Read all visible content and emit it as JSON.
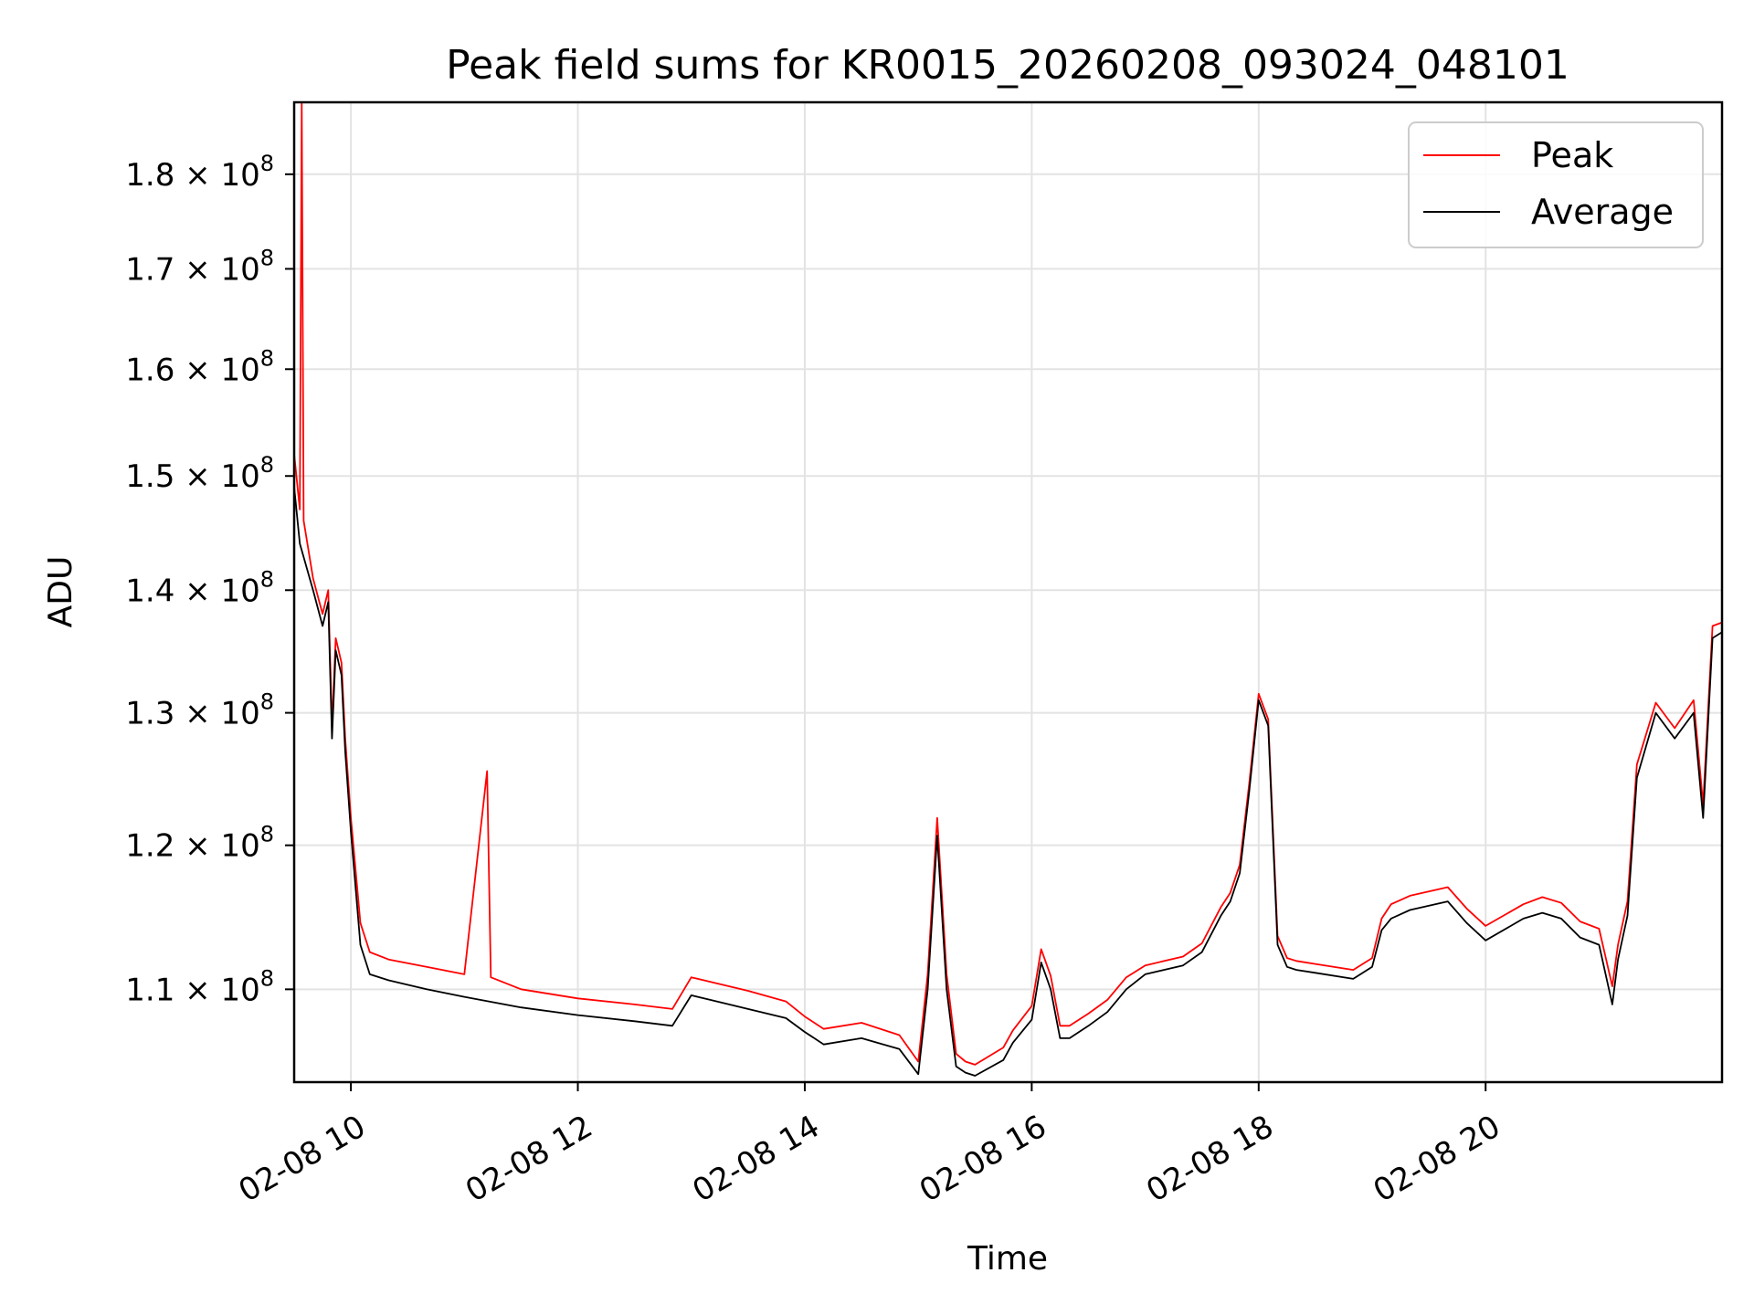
{
  "chart_data": {
    "type": "line",
    "title": "Peak field sums for KR0015_20260208_093024_048101",
    "xlabel": "Time",
    "ylabel": "ADU",
    "x_range": [
      "02-08 09:30",
      "02-08 22:05"
    ],
    "ylim": [
      104000000,
      188000000
    ],
    "y_scale": "log",
    "grid": true,
    "legend": {
      "placement": "top-right"
    },
    "x_ticks": [
      {
        "value": "02-08 10:00",
        "label": "02-08 10"
      },
      {
        "value": "02-08 12:00",
        "label": "02-08 12"
      },
      {
        "value": "02-08 14:00",
        "label": "02-08 14"
      },
      {
        "value": "02-08 16:00",
        "label": "02-08 16"
      },
      {
        "value": "02-08 18:00",
        "label": "02-08 18"
      },
      {
        "value": "02-08 20:00",
        "label": "02-08 20"
      }
    ],
    "y_ticks": [
      {
        "value": 110000000,
        "mantissa": "1.1",
        "base": "10",
        "exponent": "8"
      },
      {
        "value": 120000000,
        "mantissa": "1.2",
        "base": "10",
        "exponent": "8"
      },
      {
        "value": 130000000,
        "mantissa": "1.3",
        "base": "10",
        "exponent": "8"
      },
      {
        "value": 140000000,
        "mantissa": "1.4",
        "base": "10",
        "exponent": "8"
      },
      {
        "value": 150000000,
        "mantissa": "1.5",
        "base": "10",
        "exponent": "8"
      },
      {
        "value": 160000000,
        "mantissa": "1.6",
        "base": "10",
        "exponent": "8"
      },
      {
        "value": 170000000,
        "mantissa": "1.7",
        "base": "10",
        "exponent": "8"
      },
      {
        "value": 180000000,
        "mantissa": "1.8",
        "base": "10",
        "exponent": "8"
      }
    ],
    "series": [
      {
        "name": "Average",
        "color": "#000000",
        "x": [
          "02-08 09:30",
          "02-08 09:33",
          "02-08 09:40",
          "02-08 09:45",
          "02-08 09:48",
          "02-08 09:50",
          "02-08 09:52",
          "02-08 09:55",
          "02-08 09:57",
          "02-08 10:00",
          "02-08 10:05",
          "02-08 10:10",
          "02-08 10:20",
          "02-08 10:40",
          "02-08 11:00",
          "02-08 11:30",
          "02-08 12:00",
          "02-08 12:30",
          "02-08 12:50",
          "02-08 13:00",
          "02-08 13:10",
          "02-08 13:30",
          "02-08 13:50",
          "02-08 14:00",
          "02-08 14:10",
          "02-08 14:30",
          "02-08 14:50",
          "02-08 15:00",
          "02-08 15:05",
          "02-08 15:10",
          "02-08 15:15",
          "02-08 15:20",
          "02-08 15:25",
          "02-08 15:30",
          "02-08 15:45",
          "02-08 15:50",
          "02-08 16:00",
          "02-08 16:05",
          "02-08 16:10",
          "02-08 16:15",
          "02-08 16:20",
          "02-08 16:30",
          "02-08 16:40",
          "02-08 16:50",
          "02-08 17:00",
          "02-08 17:20",
          "02-08 17:30",
          "02-08 17:40",
          "02-08 17:45",
          "02-08 17:50",
          "02-08 17:55",
          "02-08 18:00",
          "02-08 18:05",
          "02-08 18:10",
          "02-08 18:15",
          "02-08 18:20",
          "02-08 18:30",
          "02-08 18:50",
          "02-08 19:00",
          "02-08 19:05",
          "02-08 19:10",
          "02-08 19:20",
          "02-08 19:40",
          "02-08 19:50",
          "02-08 20:00",
          "02-08 20:20",
          "02-08 20:30",
          "02-08 20:40",
          "02-08 20:50",
          "02-08 21:00",
          "02-08 21:07",
          "02-08 21:10",
          "02-08 21:15",
          "02-08 21:20",
          "02-08 21:30",
          "02-08 21:40",
          "02-08 21:50",
          "02-08 21:55",
          "02-08 22:00",
          "02-08 22:05"
        ],
        "values": [
          149000000,
          144000000,
          140000000,
          137000000,
          139000000,
          128000000,
          135000000,
          133000000,
          127000000,
          121000000,
          113000000,
          111000000,
          110600000,
          110000000,
          109500000,
          108800000,
          108300000,
          107900000,
          107600000,
          109600000,
          109300000,
          108700000,
          108100000,
          107200000,
          106400000,
          106800000,
          106100000,
          104500000,
          110000000,
          120700000,
          110000000,
          105000000,
          104600000,
          104400000,
          105400000,
          106500000,
          108000000,
          111800000,
          110000000,
          106800000,
          106800000,
          107600000,
          108500000,
          110000000,
          111000000,
          111600000,
          112500000,
          115000000,
          116000000,
          118000000,
          124000000,
          131000000,
          129000000,
          113000000,
          111500000,
          111300000,
          111100000,
          110700000,
          111500000,
          114000000,
          114800000,
          115400000,
          116000000,
          114500000,
          113300000,
          114800000,
          115200000,
          114800000,
          113500000,
          113000000,
          109000000,
          112000000,
          115000000,
          125000000,
          130000000,
          128000000,
          130000000,
          122000000,
          136000000,
          136500000
        ]
      },
      {
        "name": "Peak",
        "color": "#ff0000",
        "x": [
          "02-08 09:30",
          "02-08 09:33",
          "02-08 09:34",
          "02-08 09:35",
          "02-08 09:40",
          "02-08 09:45",
          "02-08 09:48",
          "02-08 09:50",
          "02-08 09:52",
          "02-08 09:55",
          "02-08 09:57",
          "02-08 10:00",
          "02-08 10:05",
          "02-08 10:10",
          "02-08 10:20",
          "02-08 10:40",
          "02-08 11:00",
          "02-08 11:12",
          "02-08 11:14",
          "02-08 11:30",
          "02-08 12:00",
          "02-08 12:30",
          "02-08 12:50",
          "02-08 13:00",
          "02-08 13:10",
          "02-08 13:30",
          "02-08 13:50",
          "02-08 14:00",
          "02-08 14:10",
          "02-08 14:30",
          "02-08 14:50",
          "02-08 15:00",
          "02-08 15:05",
          "02-08 15:10",
          "02-08 15:15",
          "02-08 15:20",
          "02-08 15:25",
          "02-08 15:30",
          "02-08 15:45",
          "02-08 15:50",
          "02-08 16:00",
          "02-08 16:05",
          "02-08 16:10",
          "02-08 16:15",
          "02-08 16:20",
          "02-08 16:30",
          "02-08 16:40",
          "02-08 16:50",
          "02-08 17:00",
          "02-08 17:20",
          "02-08 17:30",
          "02-08 17:40",
          "02-08 17:45",
          "02-08 17:50",
          "02-08 17:55",
          "02-08 18:00",
          "02-08 18:05",
          "02-08 18:10",
          "02-08 18:15",
          "02-08 18:20",
          "02-08 18:30",
          "02-08 18:50",
          "02-08 19:00",
          "02-08 19:05",
          "02-08 19:10",
          "02-08 19:20",
          "02-08 19:40",
          "02-08 19:50",
          "02-08 20:00",
          "02-08 20:20",
          "02-08 20:30",
          "02-08 20:40",
          "02-08 20:50",
          "02-08 21:00",
          "02-08 21:07",
          "02-08 21:10",
          "02-08 21:15",
          "02-08 21:20",
          "02-08 21:30",
          "02-08 21:40",
          "02-08 21:50",
          "02-08 21:55",
          "02-08 22:00",
          "02-08 22:05"
        ],
        "values": [
          152000000,
          147000000,
          188000000,
          146000000,
          141000000,
          138000000,
          140000000,
          129000000,
          136000000,
          134000000,
          128000000,
          122000000,
          114500000,
          112500000,
          112000000,
          111500000,
          111000000,
          125500000,
          110800000,
          110000000,
          109400000,
          109000000,
          108700000,
          110800000,
          110500000,
          109900000,
          109200000,
          108200000,
          107400000,
          107800000,
          107000000,
          105300000,
          111000000,
          122000000,
          111000000,
          105800000,
          105300000,
          105100000,
          106200000,
          107300000,
          108900000,
          112700000,
          110900000,
          107600000,
          107600000,
          108400000,
          109300000,
          110800000,
          111600000,
          112200000,
          113100000,
          115600000,
          116600000,
          118600000,
          124600000,
          131500000,
          129500000,
          113600000,
          112100000,
          111900000,
          111700000,
          111300000,
          112100000,
          114800000,
          115800000,
          116400000,
          117000000,
          115500000,
          114300000,
          115800000,
          116300000,
          115900000,
          114600000,
          114100000,
          110200000,
          113000000,
          116000000,
          126000000,
          130800000,
          128800000,
          131000000,
          123000000,
          137000000,
          137300000
        ]
      }
    ]
  }
}
